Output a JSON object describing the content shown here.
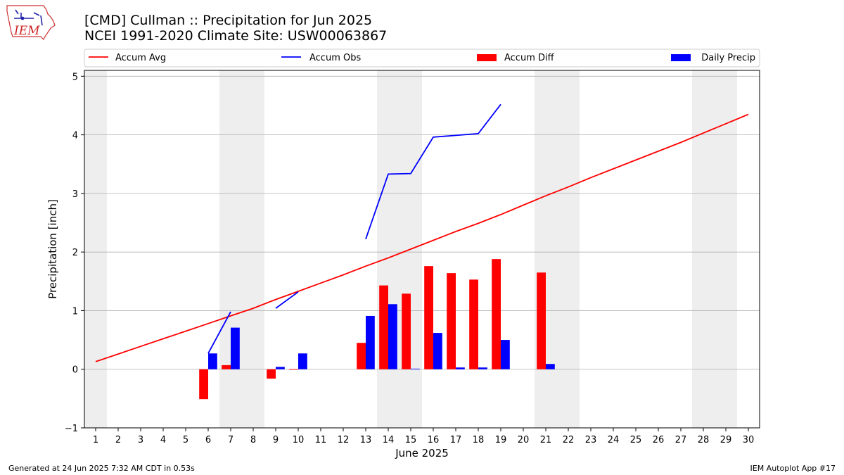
{
  "header": {
    "title_line1": "[CMD] Cullman :: Precipitation for Jun 2025",
    "title_line2": "NCEI 1991-2020 Climate Site: USW00063867",
    "logo_text": "IEM"
  },
  "footer": {
    "generated": "Generated at 24 Jun 2025 7:32 AM CDT in 0.53s",
    "app": "IEM Autoplot App #17"
  },
  "colors": {
    "accum_avg": "#ff0000",
    "accum_obs": "#0000ff",
    "accum_diff": "#ff0000",
    "daily_precip": "#0000ff",
    "weekend_shade": "#eeeeee",
    "grid": "#b0b0b0"
  },
  "chart_data": {
    "type": "bar",
    "xlabel": "June 2025",
    "ylabel": "Precipitation [inch]",
    "xlim": [
      0.5,
      30.5
    ],
    "ylim": [
      -1.0,
      5.1
    ],
    "yticks": [
      -1,
      0,
      1,
      2,
      3,
      4,
      5
    ],
    "ytick_labels": [
      "−1",
      "0",
      "1",
      "2",
      "3",
      "4",
      "5"
    ],
    "grid": "horizontal",
    "legend_position": "top",
    "x": [
      1,
      2,
      3,
      4,
      5,
      6,
      7,
      8,
      9,
      10,
      11,
      12,
      13,
      14,
      15,
      16,
      17,
      18,
      19,
      20,
      21,
      22,
      23,
      24,
      25,
      26,
      27,
      28,
      29,
      30
    ],
    "x_labels": [
      "1",
      "2",
      "3",
      "4",
      "5",
      "6",
      "7",
      "8",
      "9",
      "10",
      "11",
      "12",
      "13",
      "14",
      "15",
      "16",
      "17",
      "18",
      "19",
      "20",
      "21",
      "22",
      "23",
      "24",
      "25",
      "26",
      "27",
      "28",
      "29",
      "30"
    ],
    "weekend_days": [
      1,
      7,
      8,
      14,
      15,
      21,
      22,
      28,
      29
    ],
    "series": [
      {
        "name": "Accum Avg",
        "kind": "line",
        "values": [
          0.13,
          0.26,
          0.39,
          0.52,
          0.65,
          0.78,
          0.91,
          1.04,
          1.19,
          1.33,
          1.47,
          1.61,
          1.76,
          1.9,
          2.05,
          2.2,
          2.35,
          2.49,
          2.64,
          2.8,
          2.96,
          3.11,
          3.27,
          3.42,
          3.57,
          3.72,
          3.87,
          4.03,
          4.19,
          4.35
        ]
      },
      {
        "name": "Accum Obs",
        "kind": "line",
        "values": [
          null,
          null,
          null,
          null,
          null,
          0.27,
          0.98,
          null,
          1.04,
          1.32,
          null,
          null,
          2.22,
          3.33,
          3.34,
          3.96,
          3.99,
          4.02,
          4.52,
          null,
          null,
          null,
          null,
          null,
          null,
          null,
          null,
          null,
          null,
          null
        ]
      },
      {
        "name": "Accum Diff",
        "kind": "bar",
        "values": [
          null,
          null,
          null,
          null,
          null,
          -0.51,
          0.07,
          null,
          -0.16,
          -0.01,
          null,
          null,
          0.45,
          1.43,
          1.29,
          1.76,
          1.64,
          1.53,
          1.88,
          null,
          1.65,
          null,
          null,
          null,
          null,
          null,
          null,
          null,
          null,
          null
        ]
      },
      {
        "name": "Daily Precip",
        "kind": "bar",
        "values": [
          null,
          null,
          null,
          null,
          null,
          0.27,
          0.71,
          null,
          0.04,
          0.27,
          null,
          null,
          0.91,
          1.11,
          0.01,
          0.62,
          0.03,
          0.03,
          0.5,
          null,
          0.09,
          null,
          null,
          null,
          null,
          null,
          null,
          null,
          null,
          null
        ]
      }
    ]
  }
}
